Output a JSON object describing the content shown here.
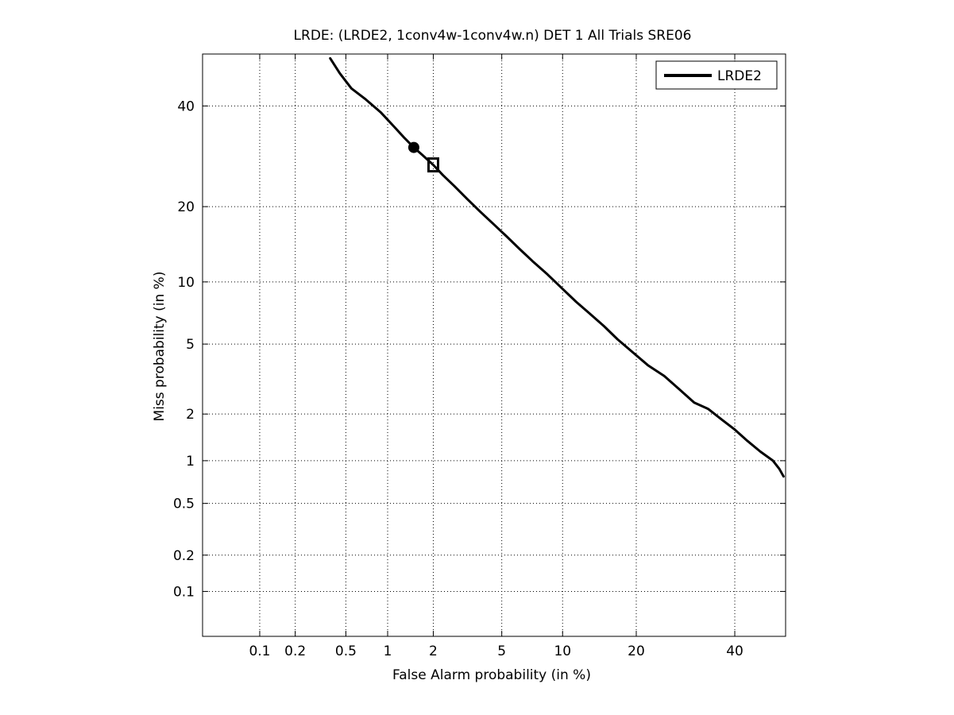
{
  "chart_data": {
    "type": "line",
    "title": "LRDE: (LRDE2, 1conv4w-1conv4w.n) DET 1 All Trials SRE06",
    "xlabel": "False Alarm probability (in %)",
    "ylabel": "Miss probability (in %)",
    "x_scale": "probit",
    "y_scale": "probit",
    "xlim": [
      0.03,
      52
    ],
    "ylim": [
      0.04,
      52
    ],
    "x_ticks": [
      0.1,
      0.2,
      0.5,
      1,
      2,
      5,
      10,
      20,
      40
    ],
    "x_tick_labels": [
      "0.1",
      "0.2",
      "0.5",
      "1",
      "2",
      "5",
      "10",
      "20",
      "40"
    ],
    "y_ticks": [
      0.1,
      0.2,
      0.5,
      1,
      2,
      5,
      10,
      20,
      40
    ],
    "y_tick_labels": [
      "0.1",
      "0.2",
      "0.5",
      "1",
      "2",
      "5",
      "10",
      "20",
      "40"
    ],
    "grid": true,
    "legend_position": "top-right",
    "series": [
      {
        "name": "LRDE2",
        "color": "#000000",
        "points": [
          [
            0.38,
            51
          ],
          [
            0.45,
            47.5
          ],
          [
            0.55,
            44
          ],
          [
            0.7,
            41.5
          ],
          [
            0.9,
            38.5
          ],
          [
            1.1,
            35.5
          ],
          [
            1.3,
            33
          ],
          [
            1.5,
            31
          ],
          [
            1.7,
            29.5
          ],
          [
            2.0,
            27.5
          ],
          [
            2.3,
            25.5
          ],
          [
            2.7,
            23.5
          ],
          [
            3.2,
            21.3
          ],
          [
            3.8,
            19.2
          ],
          [
            4.5,
            17.3
          ],
          [
            5.3,
            15.5
          ],
          [
            6.2,
            13.8
          ],
          [
            7.2,
            12.3
          ],
          [
            8.5,
            10.8
          ],
          [
            10,
            9.3
          ],
          [
            11.5,
            8.1
          ],
          [
            13,
            7.2
          ],
          [
            15,
            6.2
          ],
          [
            17,
            5.3
          ],
          [
            19.5,
            4.5
          ],
          [
            22,
            3.85
          ],
          [
            25,
            3.35
          ],
          [
            28,
            2.8
          ],
          [
            31,
            2.35
          ],
          [
            34,
            2.15
          ],
          [
            37,
            1.85
          ],
          [
            40,
            1.6
          ],
          [
            43,
            1.35
          ],
          [
            46,
            1.15
          ],
          [
            49,
            1.0
          ],
          [
            50.5,
            0.88
          ],
          [
            51.5,
            0.78
          ]
        ]
      }
    ],
    "markers": [
      {
        "shape": "circle",
        "x": 1.5,
        "y": 31
      },
      {
        "shape": "square",
        "x": 2.0,
        "y": 27.5
      }
    ]
  }
}
